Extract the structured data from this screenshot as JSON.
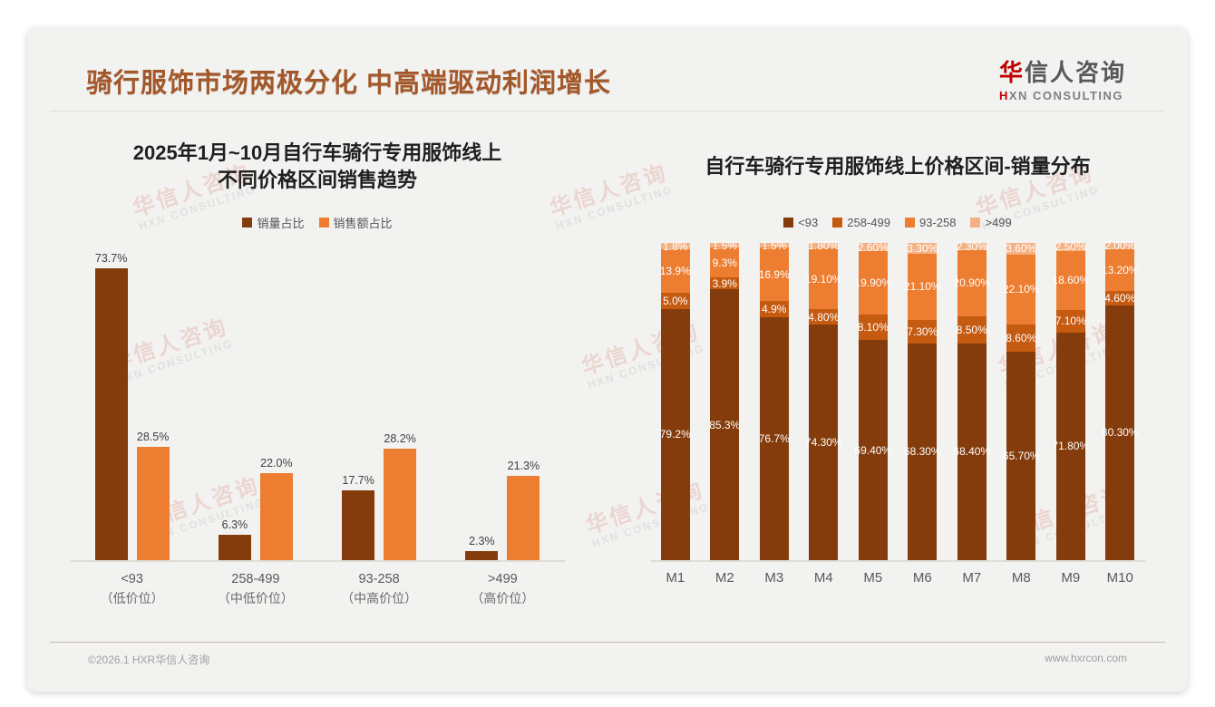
{
  "page": {
    "title": "骑行服饰市场两极分化 中高端驱动利润增长",
    "logo": {
      "cn_first": "华",
      "cn_rest": "信人咨询",
      "en_first": "H",
      "en_rest": "XN CONSULTING"
    },
    "watermark": {
      "cn": "华信人咨询",
      "en": "HXN CONSULTING"
    },
    "footer": {
      "copyright": "©2026.1 HXR华信人咨询",
      "website": "www.hxrcon.com"
    }
  },
  "colors": {
    "title_brown": "#A3582B",
    "dark_brown": "#843C0C",
    "mid_brown": "#C55A11",
    "orange": "#ED7D31",
    "light_peach": "#F4B183",
    "logo_red": "#C00000",
    "card_bg": "#F2F2F0"
  },
  "chart_data": [
    {
      "type": "bar",
      "title_line1": "2025年1月~10月自行车骑行专用服饰线上",
      "title_line2": "不同价格区间销售趋势",
      "legend_position": "top",
      "grid": false,
      "ylim": [
        0,
        80
      ],
      "categories": [
        {
          "label": "<93",
          "sub": "（低价位）"
        },
        {
          "label": "258-499",
          "sub": "（中低价位）"
        },
        {
          "label": "93-258",
          "sub": "（中高价位）"
        },
        {
          "label": ">499",
          "sub": "（高价位）"
        }
      ],
      "series": [
        {
          "name": "销量占比",
          "color": "#843C0C",
          "values": [
            73.7,
            6.3,
            17.7,
            2.3
          ],
          "labels": [
            "73.7%",
            "6.3%",
            "17.7%",
            "2.3%"
          ]
        },
        {
          "name": "销售额占比",
          "color": "#ED7D31",
          "values": [
            28.5,
            22.0,
            28.2,
            21.3
          ],
          "labels": [
            "28.5%",
            "22.0%",
            "28.2%",
            "21.3%"
          ]
        }
      ]
    },
    {
      "type": "stacked-bar",
      "title": "自行车骑行专用服饰线上价格区间-销量分布",
      "legend_position": "top",
      "grid": false,
      "ylim": [
        0,
        100
      ],
      "categories": [
        "M1",
        "M2",
        "M3",
        "M4",
        "M5",
        "M6",
        "M7",
        "M8",
        "M9",
        "M10"
      ],
      "series": [
        {
          "name": "<93",
          "color": "#843C0C",
          "values": [
            79.2,
            85.3,
            76.7,
            74.3,
            69.4,
            68.3,
            68.4,
            65.7,
            71.8,
            80.3
          ],
          "labels": [
            "79.2%",
            "85.3%",
            "76.7%",
            "74.30%",
            "69.40%",
            "68.30%",
            "68.40%",
            "65.70%",
            "71.80%",
            "80.30%"
          ]
        },
        {
          "name": "258-499",
          "color": "#C55A11",
          "values": [
            5.0,
            3.9,
            4.9,
            4.8,
            8.1,
            7.3,
            8.5,
            8.6,
            7.1,
            4.6
          ],
          "labels": [
            "5.0%",
            "3.9%",
            "4.9%",
            "4.80%",
            "8.10%",
            "7.30%",
            "8.50%",
            "8.60%",
            "7.10%",
            "4.60%"
          ]
        },
        {
          "name": "93-258",
          "color": "#ED7D31",
          "values": [
            13.9,
            9.3,
            16.9,
            19.1,
            19.9,
            21.1,
            20.9,
            22.1,
            18.6,
            13.2
          ],
          "labels": [
            "13.9%",
            "9.3%",
            "16.9%",
            "19.10%",
            "19.90%",
            "21.10%",
            "20.90%",
            "22.10%",
            "18.60%",
            "13.20%"
          ]
        },
        {
          "name": ">499",
          "color": "#F4B183",
          "values": [
            1.8,
            1.5,
            1.5,
            1.8,
            2.6,
            3.3,
            2.3,
            3.6,
            2.5,
            2.0
          ],
          "labels": [
            "1.8%",
            "1.5%",
            "1.5%",
            "1.80%",
            "2.60%",
            "3.30%",
            "2.30%",
            "3.60%",
            "2.50%",
            "2.00%"
          ]
        }
      ]
    }
  ]
}
